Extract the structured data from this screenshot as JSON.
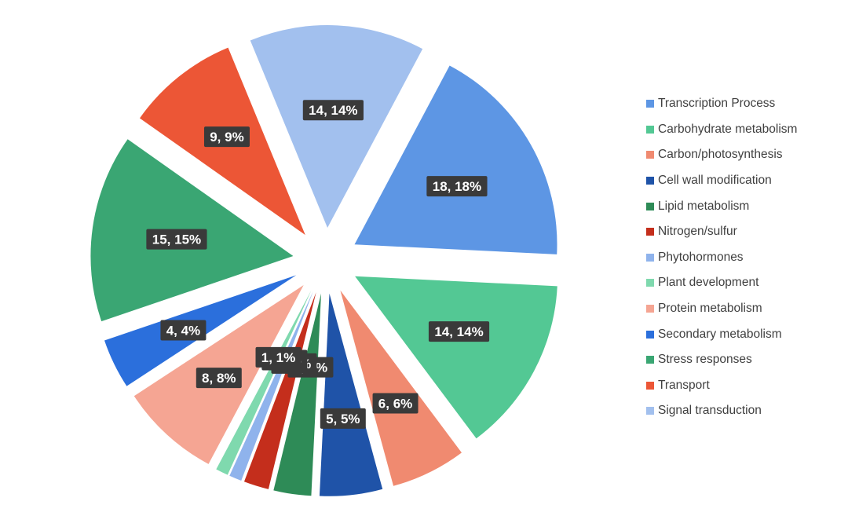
{
  "chart_data": {
    "type": "pie",
    "exploded": true,
    "legend_position": "right",
    "title": "",
    "series": [
      {
        "name": "Transcription Process",
        "value": 18,
        "label": "18, 18%",
        "color": "#5d96e4"
      },
      {
        "name": "Carbohydrate metabolism",
        "value": 14,
        "label": "14, 14%",
        "color": "#53c894"
      },
      {
        "name": "Carbon/photosynthesis",
        "value": 6,
        "label": "6, 6%",
        "color": "#f08a70"
      },
      {
        "name": "Cell wall modification",
        "value": 5,
        "label": "5, 5%",
        "color": "#1f53a8"
      },
      {
        "name": "Lipid metabolism",
        "value": 3,
        "label": "3, 3%",
        "color": "#2e8b57"
      },
      {
        "name": "Nitrogen/sulfur",
        "value": 2,
        "label": "2, 2%",
        "color": "#c42e1c"
      },
      {
        "name": "Phytohormones",
        "value": 1,
        "label": "1, 1%",
        "color": "#8fb3ec"
      },
      {
        "name": "Plant development",
        "value": 1,
        "label": "1, 1%",
        "color": "#7fd9ae"
      },
      {
        "name": "Protein metabolism",
        "value": 8,
        "label": "8, 8%",
        "color": "#f5a593"
      },
      {
        "name": "Secondary metabolism",
        "value": 4,
        "label": "4, 4%",
        "color": "#2b6fdc"
      },
      {
        "name": "Stress responses",
        "value": 15,
        "label": "15, 15%",
        "color": "#3aa673"
      },
      {
        "name": "Transport",
        "value": 9,
        "label": "9, 9%",
        "color": "#ec5636"
      },
      {
        "name": "Signal transduction",
        "value": 14,
        "label": "14, 14%",
        "color": "#a2c0ee"
      }
    ]
  }
}
